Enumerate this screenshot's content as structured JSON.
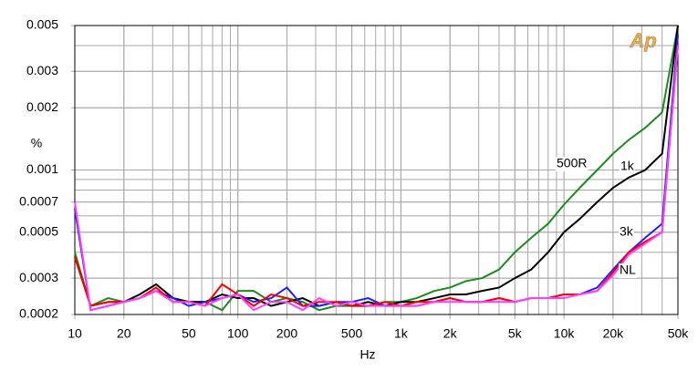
{
  "chart_data": {
    "type": "line",
    "x_label": "Hz",
    "y_label": "%",
    "logo": "Ap",
    "x_log": true,
    "y_log": true,
    "grid": true,
    "xlim": [
      10,
      50000
    ],
    "ylim": [
      0.0002,
      0.005
    ],
    "xticks": [
      10,
      20,
      50,
      100,
      200,
      500,
      {
        "value": 1000,
        "label": "1k"
      },
      {
        "value": 2000,
        "label": "2k"
      },
      {
        "value": 5000,
        "label": "5k"
      },
      {
        "value": 10000,
        "label": "10k"
      },
      {
        "value": 20000,
        "label": "20k"
      },
      {
        "value": 50000,
        "label": "50k"
      }
    ],
    "yticks": [
      0.0002,
      0.0003,
      0.0005,
      0.0007,
      0.001,
      0.002,
      0.003,
      0.005
    ],
    "x": [
      10,
      12.5,
      16,
      20,
      25,
      31.5,
      40,
      50,
      63,
      80,
      100,
      125,
      160,
      200,
      250,
      315,
      400,
      500,
      630,
      800,
      1000,
      1250,
      1600,
      2000,
      2500,
      3150,
      4000,
      5000,
      6300,
      8000,
      10000,
      12500,
      16000,
      20000,
      25000,
      31500,
      40000,
      50000
    ],
    "series": [
      {
        "name": "500R",
        "color": "#1a8a1a",
        "values": [
          0.0004,
          0.00022,
          0.00024,
          0.00023,
          0.00024,
          0.00026,
          0.00024,
          0.00023,
          0.00023,
          0.00021,
          0.00026,
          0.00026,
          0.00023,
          0.00024,
          0.00023,
          0.00021,
          0.00022,
          0.00022,
          0.00022,
          0.00023,
          0.00023,
          0.00024,
          0.00026,
          0.00027,
          0.00029,
          0.0003,
          0.00033,
          0.0004,
          0.00047,
          0.00055,
          0.00068,
          0.00082,
          0.001,
          0.0012,
          0.0014,
          0.0016,
          0.0019,
          0.005
        ]
      },
      {
        "name": "1k",
        "color": "#000000",
        "values": [
          0.00038,
          0.00022,
          0.00023,
          0.00023,
          0.00025,
          0.00028,
          0.00024,
          0.00023,
          0.00023,
          0.00025,
          0.00024,
          0.00024,
          0.00022,
          0.00023,
          0.00024,
          0.00022,
          0.00023,
          0.00022,
          0.00023,
          0.00022,
          0.00023,
          0.00023,
          0.00024,
          0.00025,
          0.00025,
          0.00026,
          0.00027,
          0.0003,
          0.00033,
          0.0004,
          0.0005,
          0.00058,
          0.0007,
          0.00082,
          0.00092,
          0.001,
          0.0012,
          0.005
        ]
      },
      {
        "name": "3k",
        "color": "#2020ff",
        "values": [
          0.00065,
          0.00021,
          0.00022,
          0.00023,
          0.00024,
          0.00026,
          0.00024,
          0.00022,
          0.00023,
          0.00024,
          0.00025,
          0.00023,
          0.00024,
          0.00027,
          0.00022,
          0.00022,
          0.00023,
          0.00023,
          0.00024,
          0.00022,
          0.00022,
          0.00022,
          0.00023,
          0.00024,
          0.00023,
          0.00023,
          0.00024,
          0.00023,
          0.00024,
          0.00024,
          0.00025,
          0.00025,
          0.00027,
          0.00033,
          0.0004,
          0.00047,
          0.00055,
          0.0045
        ]
      },
      {
        "name": "NL",
        "color": "#ff0000",
        "values": [
          0.00038,
          0.00022,
          0.00023,
          0.00023,
          0.00024,
          0.00027,
          0.00023,
          0.00023,
          0.00022,
          0.00028,
          0.00025,
          0.00022,
          0.00025,
          0.00024,
          0.00022,
          0.00023,
          0.00023,
          0.00022,
          0.00022,
          0.00023,
          0.00022,
          0.00023,
          0.00023,
          0.00024,
          0.00023,
          0.00023,
          0.00024,
          0.00023,
          0.00024,
          0.00024,
          0.00025,
          0.00025,
          0.00026,
          0.00032,
          0.0004,
          0.00045,
          0.0005,
          0.004
        ]
      },
      {
        "color": "#ff40ff",
        "values": [
          0.0007,
          0.00021,
          0.00022,
          0.00023,
          0.00024,
          0.00026,
          0.00023,
          0.00023,
          0.00022,
          0.00024,
          0.00025,
          0.00021,
          0.00023,
          0.00023,
          0.00021,
          0.00024,
          0.00022,
          0.00023,
          0.00022,
          0.00022,
          0.00022,
          0.00022,
          0.00023,
          0.00023,
          0.00023,
          0.00023,
          0.00023,
          0.00023,
          0.00024,
          0.00024,
          0.00024,
          0.00025,
          0.00026,
          0.00031,
          0.00039,
          0.00044,
          0.0005,
          0.004
        ]
      }
    ]
  }
}
